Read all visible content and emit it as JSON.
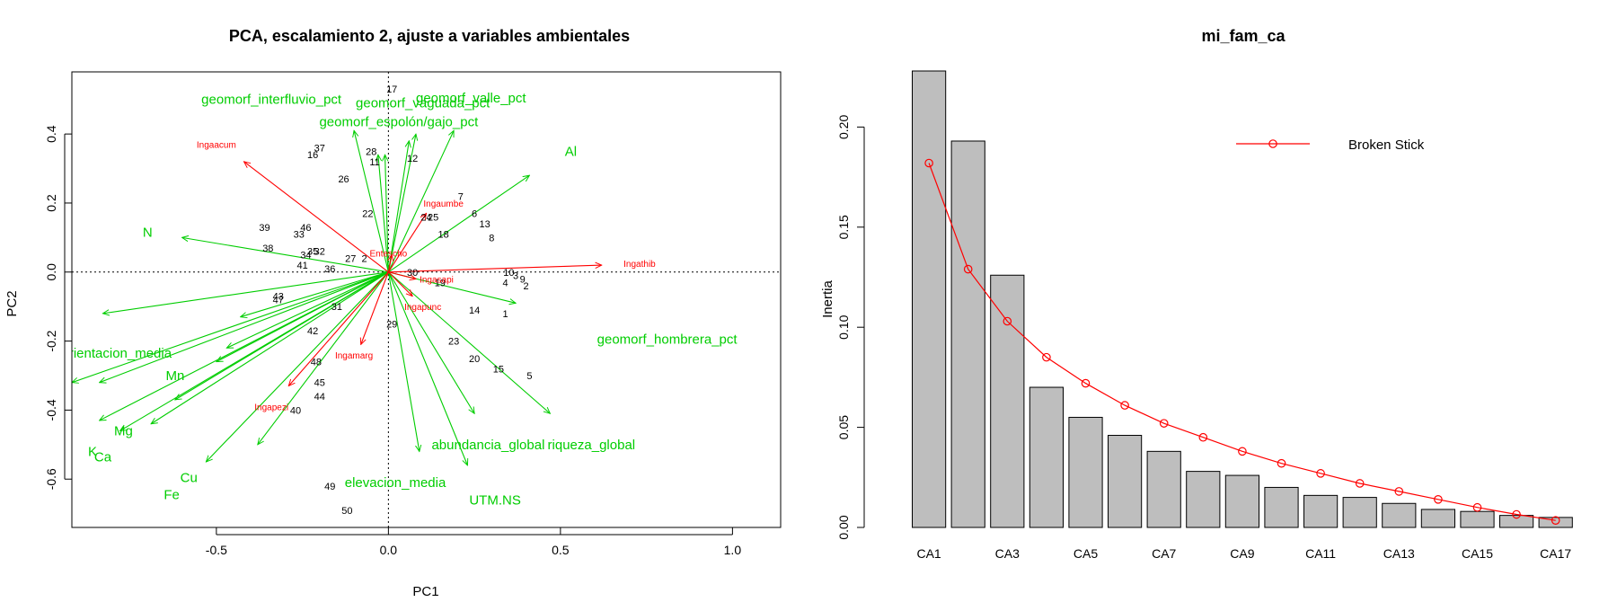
{
  "colors": {
    "sites": "#000000",
    "species": "#ff0000",
    "env": "#00cd00",
    "bar_fill": "#bebebe",
    "broken_stick": "#ff0000"
  },
  "chart_data": [
    {
      "type": "scatter",
      "title": "PCA, escalamiento 2, ajuste a variables ambientales",
      "xlabel": "PC1",
      "ylabel": "PC2",
      "xlim": [
        -0.92,
        1.14
      ],
      "ylim": [
        -0.74,
        0.58
      ],
      "xticks": [
        -0.5,
        0.0,
        0.5,
        1.0
      ],
      "xtick_labels": [
        "-0.5",
        "0.0",
        "0.5",
        "1.0"
      ],
      "yticks": [
        -0.6,
        -0.4,
        -0.2,
        0.0,
        0.2,
        0.4
      ],
      "ytick_labels": [
        "-0.6",
        "-0.4",
        "-0.2",
        "0.0",
        "0.2",
        "0.4"
      ],
      "reference_lines": {
        "x": 0,
        "y": 0,
        "style": "dotted"
      },
      "sites": [
        {
          "label": "17",
          "x": 0.01,
          "y": 0.53
        },
        {
          "label": "37",
          "x": -0.2,
          "y": 0.36
        },
        {
          "label": "16",
          "x": -0.22,
          "y": 0.34
        },
        {
          "label": "28",
          "x": -0.05,
          "y": 0.35
        },
        {
          "label": "11",
          "x": -0.04,
          "y": 0.32
        },
        {
          "label": "12",
          "x": 0.07,
          "y": 0.33
        },
        {
          "label": "26",
          "x": -0.13,
          "y": 0.27
        },
        {
          "label": "7",
          "x": 0.21,
          "y": 0.22
        },
        {
          "label": "6",
          "x": 0.25,
          "y": 0.17
        },
        {
          "label": "13",
          "x": 0.28,
          "y": 0.14
        },
        {
          "label": "22",
          "x": -0.06,
          "y": 0.17
        },
        {
          "label": "24",
          "x": 0.11,
          "y": 0.16
        },
        {
          "label": "25",
          "x": 0.13,
          "y": 0.16
        },
        {
          "label": "18",
          "x": 0.16,
          "y": 0.11
        },
        {
          "label": "8",
          "x": 0.3,
          "y": 0.1
        },
        {
          "label": "39",
          "x": -0.36,
          "y": 0.13
        },
        {
          "label": "46",
          "x": -0.24,
          "y": 0.13
        },
        {
          "label": "33",
          "x": -0.26,
          "y": 0.11
        },
        {
          "label": "38",
          "x": -0.35,
          "y": 0.07
        },
        {
          "label": "35",
          "x": -0.22,
          "y": 0.06
        },
        {
          "label": "32",
          "x": -0.2,
          "y": 0.06
        },
        {
          "label": "34",
          "x": -0.24,
          "y": 0.05
        },
        {
          "label": "41",
          "x": -0.25,
          "y": 0.02
        },
        {
          "label": "36",
          "x": -0.17,
          "y": 0.01
        },
        {
          "label": "27",
          "x": -0.11,
          "y": 0.04
        },
        {
          "label": "2",
          "x": -0.07,
          "y": 0.04
        },
        {
          "label": "30",
          "x": 0.07,
          "y": 0.0
        },
        {
          "label": "10",
          "x": 0.35,
          "y": 0.0
        },
        {
          "label": "3",
          "x": 0.37,
          "y": -0.01
        },
        {
          "label": "9",
          "x": 0.39,
          "y": -0.02
        },
        {
          "label": "4",
          "x": 0.34,
          "y": -0.03
        },
        {
          "label": "2",
          "x": 0.4,
          "y": -0.04
        },
        {
          "label": "19",
          "x": 0.15,
          "y": -0.03
        },
        {
          "label": "43",
          "x": -0.32,
          "y": -0.07
        },
        {
          "label": "47",
          "x": -0.32,
          "y": -0.08
        },
        {
          "label": "31",
          "x": -0.15,
          "y": -0.1
        },
        {
          "label": "14",
          "x": 0.25,
          "y": -0.11
        },
        {
          "label": "1",
          "x": 0.34,
          "y": -0.12
        },
        {
          "label": "29",
          "x": 0.01,
          "y": -0.15
        },
        {
          "label": "42",
          "x": -0.22,
          "y": -0.17
        },
        {
          "label": "23",
          "x": 0.19,
          "y": -0.2
        },
        {
          "label": "20",
          "x": 0.25,
          "y": -0.25
        },
        {
          "label": "48",
          "x": -0.21,
          "y": -0.26
        },
        {
          "label": "15",
          "x": 0.32,
          "y": -0.28
        },
        {
          "label": "5",
          "x": 0.41,
          "y": -0.3
        },
        {
          "label": "45",
          "x": -0.2,
          "y": -0.32
        },
        {
          "label": "44",
          "x": -0.2,
          "y": -0.36
        },
        {
          "label": "40",
          "x": -0.27,
          "y": -0.4
        },
        {
          "label": "49",
          "x": -0.17,
          "y": -0.62
        },
        {
          "label": "50",
          "x": -0.12,
          "y": -0.69
        }
      ],
      "species": [
        {
          "name": "Ingaacum",
          "x": -0.42,
          "y": 0.32,
          "lx": -0.5,
          "ly": 0.37
        },
        {
          "name": "Ingaumbe",
          "x": 0.11,
          "y": 0.17,
          "lx": 0.16,
          "ly": 0.2
        },
        {
          "name": "Entescho",
          "x": 0.01,
          "y": 0.05,
          "lx": 0.0,
          "ly": 0.055
        },
        {
          "name": "Ingathib",
          "x": 0.62,
          "y": 0.02,
          "lx": 0.73,
          "ly": 0.025
        },
        {
          "name": "Ingasapi",
          "x": 0.08,
          "y": -0.02,
          "lx": 0.14,
          "ly": -0.02
        },
        {
          "name": "Ingapunc",
          "x": 0.07,
          "y": -0.07,
          "lx": 0.1,
          "ly": -0.1
        },
        {
          "name": "Ingamarg",
          "x": -0.08,
          "y": -0.21,
          "lx": -0.1,
          "ly": -0.24
        },
        {
          "name": "Ingapezi",
          "x": -0.29,
          "y": -0.33,
          "lx": -0.34,
          "ly": -0.39
        }
      ],
      "env": [
        {
          "name": "geomorf_interfluvio_pct",
          "x": -0.1,
          "y": 0.41,
          "lx": -0.34,
          "ly": 0.5
        },
        {
          "name": "geomorf_vaguada_pct",
          "x": -0.01,
          "y": 0.34,
          "lx": 0.1,
          "ly": 0.49
        },
        {
          "name": "geomorf_valle_pct",
          "x": 0.19,
          "y": 0.41,
          "lx": 0.24,
          "ly": 0.505
        },
        {
          "name": "geomorf_espolón/gajo_pct",
          "x": 0.08,
          "y": 0.4,
          "lx": 0.03,
          "ly": 0.435
        },
        {
          "name": "Al",
          "x": 0.41,
          "y": 0.28,
          "lx": 0.53,
          "ly": 0.35
        },
        {
          "name": "N",
          "x": -0.6,
          "y": 0.1,
          "lx": -0.7,
          "ly": 0.115
        },
        {
          "name": "geomorf_hombrera_pct",
          "x": 0.37,
          "y": -0.09,
          "lx": 0.81,
          "ly": -0.195
        },
        {
          "name": "orientacion_media",
          "x": -0.83,
          "y": -0.12,
          "lx": -0.79,
          "ly": -0.235
        },
        {
          "name": "Mn",
          "x": -0.62,
          "y": -0.37,
          "lx": -0.62,
          "ly": -0.3
        },
        {
          "name": "Mg",
          "x": -0.69,
          "y": -0.44,
          "lx": -0.77,
          "ly": -0.46
        },
        {
          "name": "K",
          "x": -0.84,
          "y": -0.43,
          "lx": -0.86,
          "ly": -0.52
        },
        {
          "name": "Ca",
          "x": -0.78,
          "y": -0.46,
          "lx": -0.83,
          "ly": -0.535
        },
        {
          "name": "Cu",
          "x": -0.53,
          "y": -0.55,
          "lx": -0.58,
          "ly": -0.595
        },
        {
          "name": "Fe",
          "x": -0.38,
          "y": -0.5,
          "lx": -0.63,
          "ly": -0.645
        },
        {
          "name": "abundancia_global",
          "x": 0.09,
          "y": -0.52,
          "lx": 0.29,
          "ly": -0.5
        },
        {
          "name": "riqueza_global",
          "x": 0.23,
          "y": -0.56,
          "lx": 0.59,
          "ly": -0.5
        },
        {
          "name": "elevacion_media",
          "x": 0.25,
          "y": -0.41,
          "lx": 0.02,
          "ly": -0.61
        },
        {
          "name": "UTM.NS",
          "x": 0.47,
          "y": -0.41,
          "lx": 0.31,
          "ly": -0.66
        },
        {
          "name": "",
          "x": -0.92,
          "y": -0.32
        },
        {
          "name": "",
          "x": -0.84,
          "y": -0.32
        },
        {
          "name": "",
          "x": -0.43,
          "y": -0.13
        },
        {
          "name": "",
          "x": -0.47,
          "y": -0.22
        },
        {
          "name": "",
          "x": -0.5,
          "y": -0.26
        },
        {
          "name": "",
          "x": -0.03,
          "y": 0.34
        },
        {
          "name": "",
          "x": 0.06,
          "y": 0.38
        }
      ]
    },
    {
      "type": "bar",
      "title": "mi_fam_ca",
      "xlabel": "",
      "ylabel": "Inertia",
      "categories": [
        "CA1",
        "CA2",
        "CA3",
        "CA4",
        "CA5",
        "CA6",
        "CA7",
        "CA8",
        "CA9",
        "CA10",
        "CA11",
        "CA12",
        "CA13",
        "CA14",
        "CA15",
        "CA16",
        "CA17"
      ],
      "xtick_labels": [
        "CA1",
        "CA3",
        "CA5",
        "CA7",
        "CA9",
        "CA11",
        "CA13",
        "CA15",
        "CA17"
      ],
      "values": [
        0.228,
        0.193,
        0.126,
        0.07,
        0.055,
        0.046,
        0.038,
        0.028,
        0.026,
        0.02,
        0.016,
        0.015,
        0.012,
        0.009,
        0.008,
        0.006,
        0.005
      ],
      "ylim": [
        0,
        0.228
      ],
      "yticks": [
        0.0,
        0.05,
        0.1,
        0.15,
        0.2
      ],
      "ytick_labels": [
        "0.00",
        "0.05",
        "0.10",
        "0.15",
        "0.20"
      ],
      "series": [
        {
          "name": "Broken Stick",
          "type": "line",
          "values": [
            0.182,
            0.129,
            0.103,
            0.085,
            0.072,
            0.061,
            0.052,
            0.045,
            0.038,
            0.032,
            0.027,
            0.022,
            0.018,
            0.014,
            0.01,
            0.0065,
            0.0035
          ]
        }
      ],
      "legend": "top-right"
    }
  ]
}
